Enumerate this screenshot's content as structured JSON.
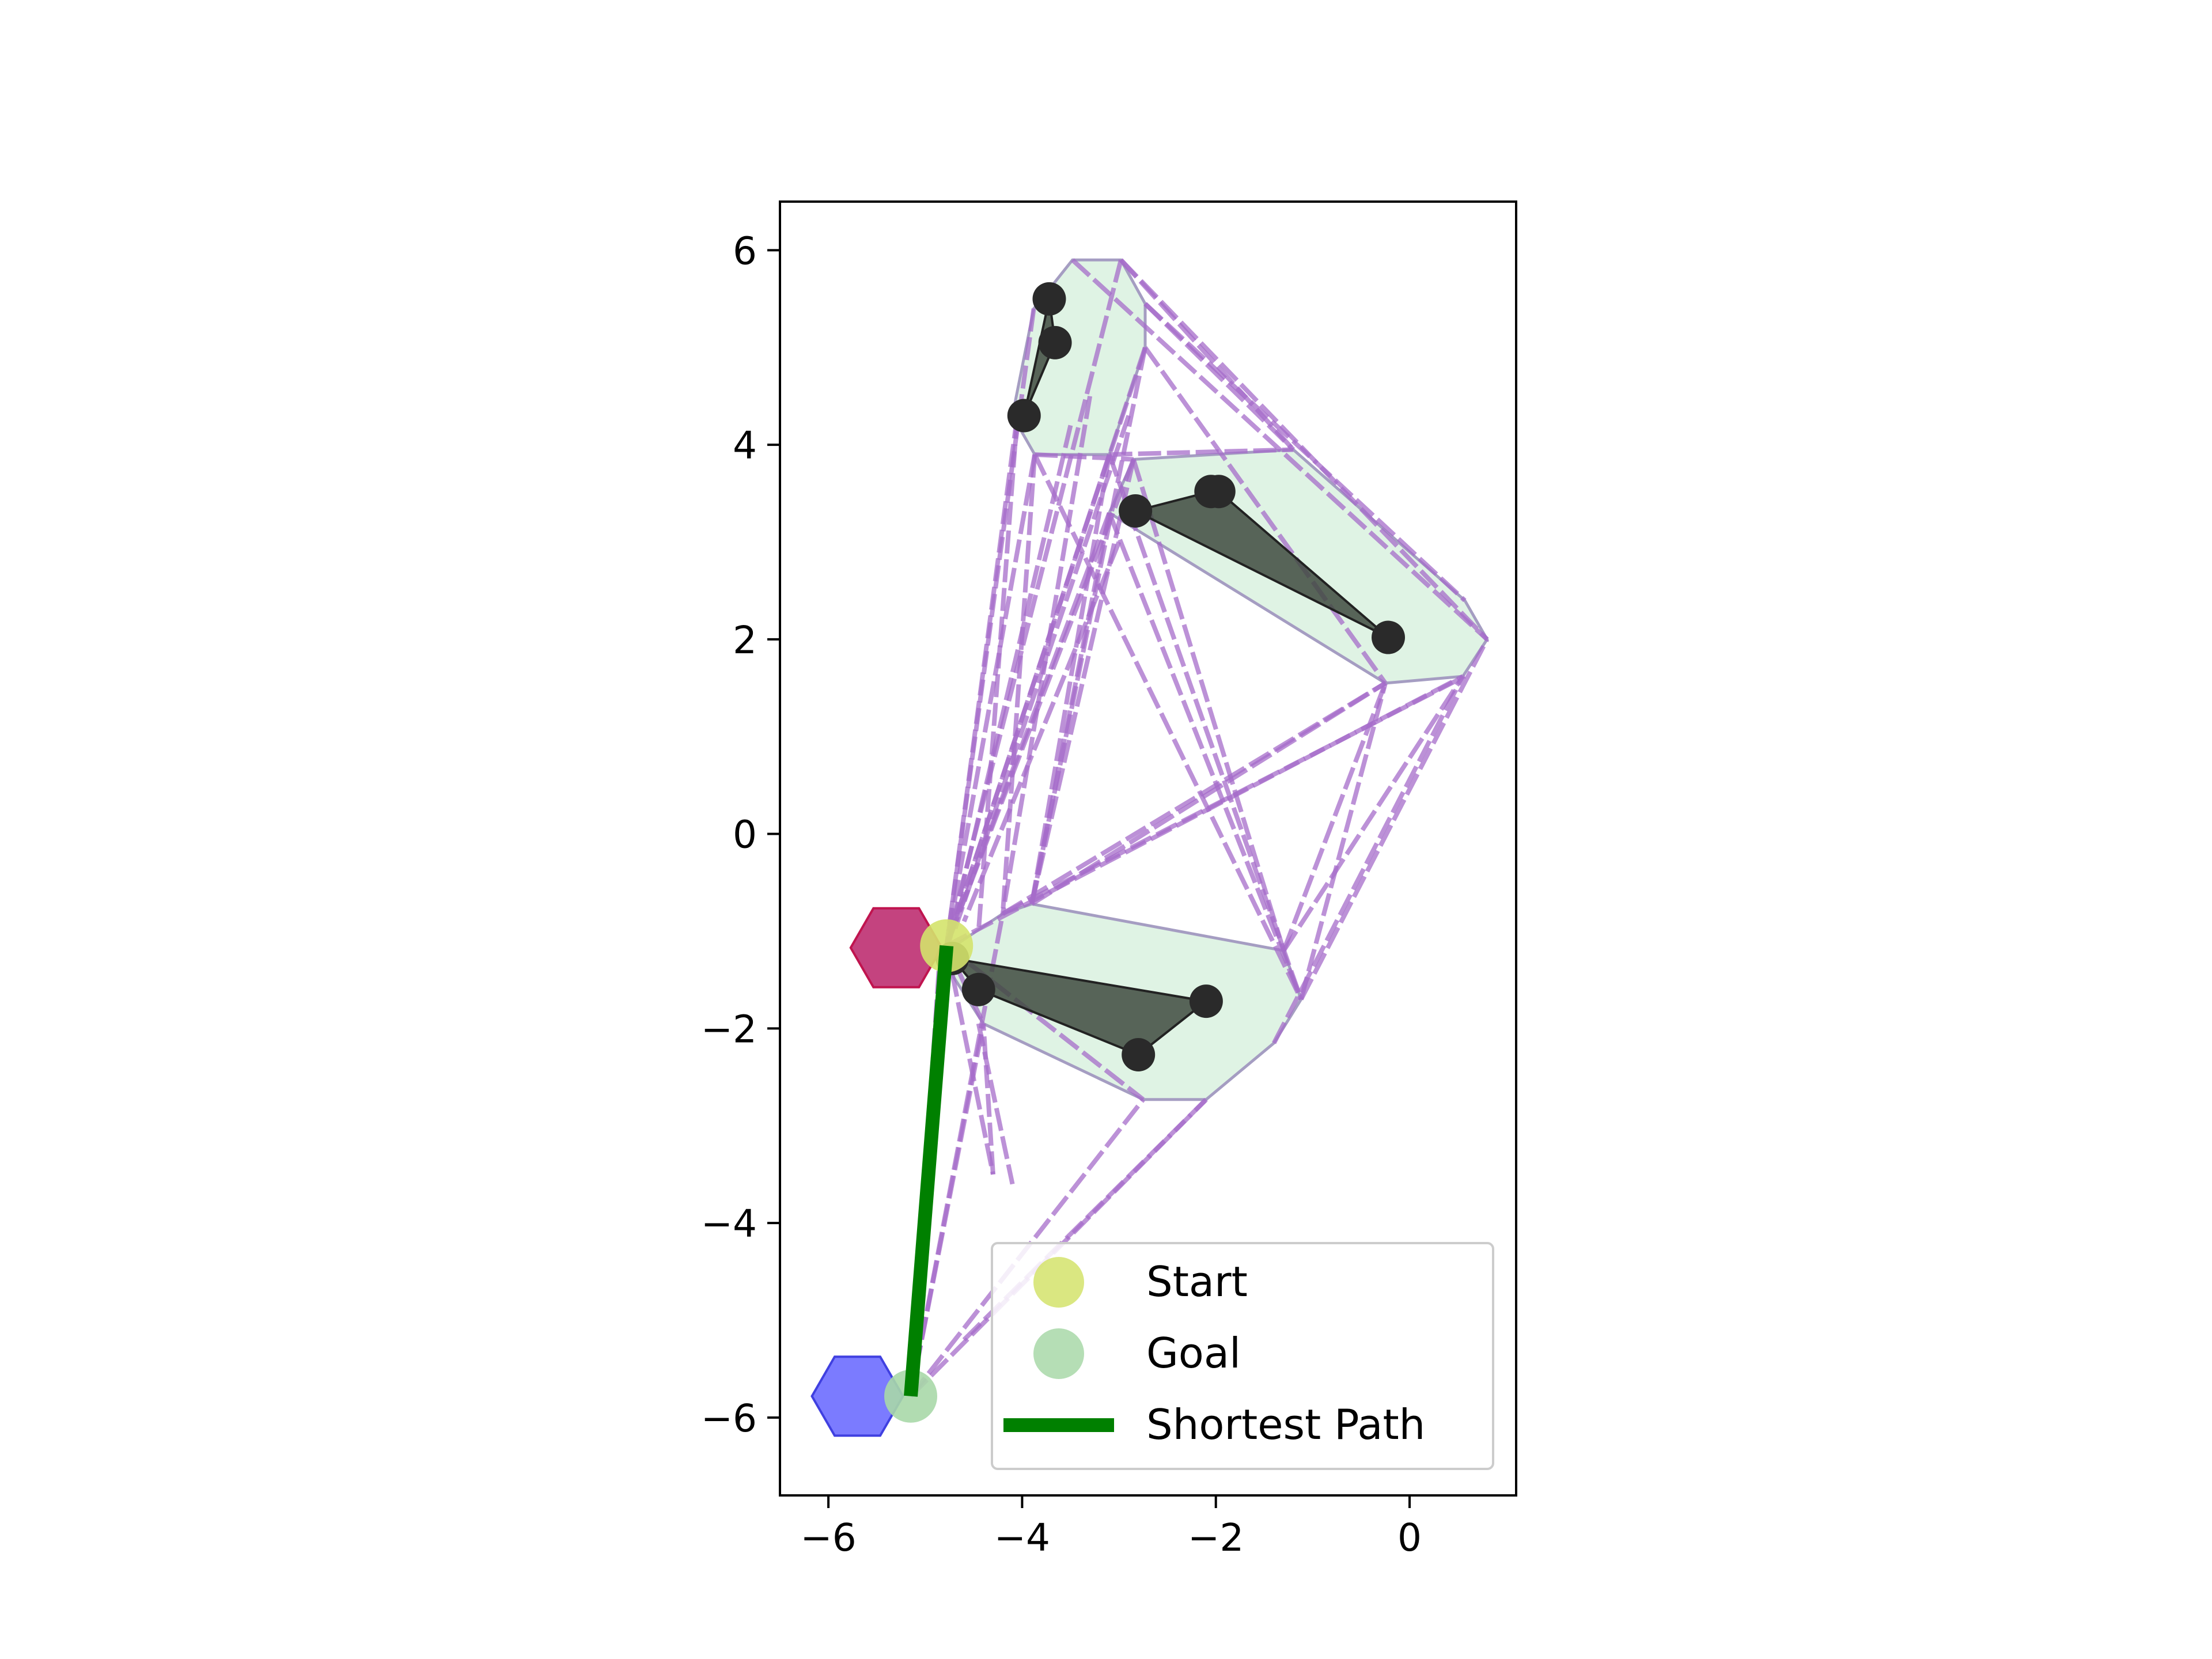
{
  "chart_data": {
    "type": "scatter",
    "title": "",
    "xlabel": "",
    "ylabel": "",
    "xlim": [
      -6.5,
      1.1
    ],
    "ylim": [
      -6.8,
      6.5
    ],
    "xticks": [
      -6,
      -4,
      -2,
      0
    ],
    "yticks": [
      -6,
      -4,
      -2,
      0,
      2,
      4,
      6
    ],
    "xtick_labels": [
      "−6",
      "−4",
      "−2",
      "0"
    ],
    "ytick_labels": [
      "−6",
      "−4",
      "−2",
      "0",
      "2",
      "4",
      "6"
    ],
    "grid": false,
    "legend_position": "lower right",
    "legend": [
      {
        "label": "Start",
        "kind": "marker",
        "color": "#d4e36b"
      },
      {
        "label": "Goal",
        "kind": "marker",
        "color": "#a8d8a8"
      },
      {
        "label": "Shortest Path",
        "kind": "line",
        "color": "#008000"
      }
    ],
    "start": {
      "x": -4.78,
      "y": -1.15,
      "color": "#d4e36b"
    },
    "goal": {
      "x": -5.15,
      "y": -5.78,
      "color": "#a8d8a8"
    },
    "shortest_path": {
      "points": [
        [
          -4.78,
          -1.15
        ],
        [
          -5.15,
          -5.78
        ]
      ],
      "color": "#008000"
    },
    "hexagons": [
      {
        "name": "red-hexagon",
        "cx": -5.3,
        "cy": -1.17,
        "r": 0.47,
        "fill": "#b5145f",
        "stroke": "#c0144f"
      },
      {
        "name": "blue-hexagon",
        "cx": -5.7,
        "cy": -5.78,
        "r": 0.47,
        "fill": "#5a5aff",
        "stroke": "#4040e0"
      }
    ],
    "obstacles": [
      {
        "name": "obstacle-top",
        "points": [
          [
            -3.72,
            5.5
          ],
          [
            -3.66,
            5.05
          ],
          [
            -3.98,
            4.3
          ]
        ]
      },
      {
        "name": "obstacle-middle",
        "points": [
          [
            -2.83,
            3.32
          ],
          [
            -2.05,
            3.52
          ],
          [
            -1.97,
            3.52
          ],
          [
            -0.22,
            2.02
          ]
        ]
      },
      {
        "name": "obstacle-bottom",
        "points": [
          [
            -4.72,
            -1.28
          ],
          [
            -4.45,
            -1.6
          ],
          [
            -2.8,
            -2.27
          ],
          [
            -2.1,
            -1.72
          ]
        ]
      }
    ],
    "inflated_regions": [
      {
        "name": "inflated-top",
        "points": [
          [
            -3.48,
            5.9
          ],
          [
            -2.98,
            5.9
          ],
          [
            -2.73,
            5.45
          ],
          [
            -2.73,
            5.0
          ],
          [
            -3.1,
            3.9
          ],
          [
            -3.87,
            3.9
          ],
          [
            -4.1,
            4.3
          ],
          [
            -3.88,
            5.4
          ]
        ]
      },
      {
        "name": "inflated-middle",
        "points": [
          [
            -2.85,
            3.85
          ],
          [
            -1.2,
            3.95
          ],
          [
            0.57,
            2.4
          ],
          [
            0.8,
            2.0
          ],
          [
            0.55,
            1.62
          ],
          [
            -0.25,
            1.55
          ],
          [
            -3.1,
            3.3
          ]
        ]
      },
      {
        "name": "inflated-bottom",
        "points": [
          [
            -4.2,
            -0.82
          ],
          [
            -3.9,
            -0.72
          ],
          [
            -1.3,
            -1.2
          ],
          [
            -1.12,
            -1.7
          ],
          [
            -1.4,
            -2.15
          ],
          [
            -2.1,
            -2.73
          ],
          [
            -2.75,
            -2.73
          ],
          [
            -4.4,
            -1.95
          ],
          [
            -4.85,
            -1.25
          ]
        ]
      }
    ],
    "roadmap_edges": [
      [
        [
          -4.05,
          4.3
        ],
        [
          -4.78,
          -1.15
        ]
      ],
      [
        [
          -3.88,
          5.4
        ],
        [
          -4.78,
          -1.15
        ]
      ],
      [
        [
          -3.5,
          4.2
        ],
        [
          -4.75,
          -1.1
        ]
      ],
      [
        [
          -3.1,
          3.9
        ],
        [
          -4.78,
          -1.15
        ]
      ],
      [
        [
          -2.73,
          5.0
        ],
        [
          -4.78,
          -1.15
        ]
      ],
      [
        [
          -2.9,
          4.3
        ],
        [
          -4.7,
          -1.0
        ]
      ],
      [
        [
          -2.85,
          3.85
        ],
        [
          -4.78,
          -1.15
        ]
      ],
      [
        [
          -3.1,
          3.3
        ],
        [
          -4.78,
          -1.15
        ]
      ],
      [
        [
          -3.0,
          3.0
        ],
        [
          -4.6,
          -0.9
        ]
      ],
      [
        [
          -2.98,
          5.9
        ],
        [
          -4.78,
          -1.15
        ]
      ],
      [
        [
          -3.3,
          4.5
        ],
        [
          -4.2,
          -0.82
        ]
      ],
      [
        [
          -2.85,
          3.85
        ],
        [
          -3.9,
          -0.72
        ]
      ],
      [
        [
          -3.1,
          3.9
        ],
        [
          -3.9,
          -0.72
        ]
      ],
      [
        [
          -2.73,
          5.0
        ],
        [
          -3.9,
          -0.72
        ]
      ],
      [
        [
          -3.1,
          3.3
        ],
        [
          -3.9,
          -0.72
        ]
      ],
      [
        [
          -4.05,
          4.3
        ],
        [
          -4.45,
          -1.0
        ]
      ],
      [
        [
          -3.87,
          3.9
        ],
        [
          -4.2,
          -0.82
        ]
      ],
      [
        [
          -3.87,
          3.9
        ],
        [
          -4.78,
          -1.15
        ]
      ],
      [
        [
          -3.87,
          3.9
        ],
        [
          -1.12,
          -1.7
        ]
      ],
      [
        [
          -3.1,
          3.3
        ],
        [
          -1.12,
          -1.7
        ]
      ],
      [
        [
          -2.85,
          3.85
        ],
        [
          -1.3,
          -1.2
        ]
      ],
      [
        [
          -3.1,
          3.9
        ],
        [
          -1.12,
          -1.7
        ]
      ],
      [
        [
          -2.98,
          5.9
        ],
        [
          -1.2,
          3.95
        ]
      ],
      [
        [
          -2.98,
          5.9
        ],
        [
          0.8,
          2.0
        ]
      ],
      [
        [
          -2.73,
          5.45
        ],
        [
          0.57,
          2.4
        ]
      ],
      [
        [
          -2.73,
          5.0
        ],
        [
          -0.25,
          1.55
        ]
      ],
      [
        [
          -3.1,
          3.9
        ],
        [
          -1.2,
          3.95
        ]
      ],
      [
        [
          -3.87,
          3.9
        ],
        [
          -2.85,
          3.85
        ]
      ],
      [
        [
          -2.73,
          5.45
        ],
        [
          -1.2,
          3.95
        ]
      ],
      [
        [
          -3.48,
          5.9
        ],
        [
          0.8,
          2.0
        ]
      ],
      [
        [
          -4.2,
          -0.82
        ],
        [
          0.57,
          1.62
        ]
      ],
      [
        [
          -3.9,
          -0.72
        ],
        [
          -0.25,
          1.55
        ]
      ],
      [
        [
          -4.78,
          -1.15
        ],
        [
          0.55,
          1.62
        ]
      ],
      [
        [
          -4.2,
          -0.82
        ],
        [
          -0.25,
          1.55
        ]
      ],
      [
        [
          -1.3,
          -1.2
        ],
        [
          0.55,
          1.62
        ]
      ],
      [
        [
          -1.12,
          -1.7
        ],
        [
          0.8,
          2.0
        ]
      ],
      [
        [
          -1.4,
          -2.15
        ],
        [
          0.55,
          1.62
        ]
      ],
      [
        [
          -1.3,
          -1.2
        ],
        [
          -0.25,
          1.55
        ]
      ],
      [
        [
          -1.12,
          -1.7
        ],
        [
          -0.25,
          1.55
        ]
      ],
      [
        [
          -5.15,
          -5.78
        ],
        [
          -2.1,
          -2.73
        ]
      ],
      [
        [
          -5.15,
          -5.78
        ],
        [
          -2.75,
          -2.73
        ]
      ],
      [
        [
          -5.15,
          -5.78
        ],
        [
          -4.4,
          -1.95
        ]
      ],
      [
        [
          -5.15,
          -5.78
        ],
        [
          -4.78,
          -1.15
        ]
      ],
      [
        [
          -5.15,
          -5.78
        ],
        [
          -4.85,
          -1.25
        ]
      ],
      [
        [
          -5.15,
          -5.78
        ],
        [
          -4.2,
          -0.82
        ]
      ],
      [
        [
          -4.6,
          -5.2
        ],
        [
          -2.1,
          -2.73
        ]
      ],
      [
        [
          -4.78,
          -1.15
        ],
        [
          -4.4,
          -1.95
        ]
      ],
      [
        [
          -4.78,
          -1.15
        ],
        [
          -2.75,
          -2.73
        ]
      ],
      [
        [
          -4.3,
          -3.5
        ],
        [
          -4.4,
          -1.95
        ]
      ],
      [
        [
          -4.78,
          -1.15
        ],
        [
          -4.3,
          -3.5
        ]
      ],
      [
        [
          -4.45,
          -1.95
        ],
        [
          -4.1,
          -3.6
        ]
      ]
    ]
  }
}
